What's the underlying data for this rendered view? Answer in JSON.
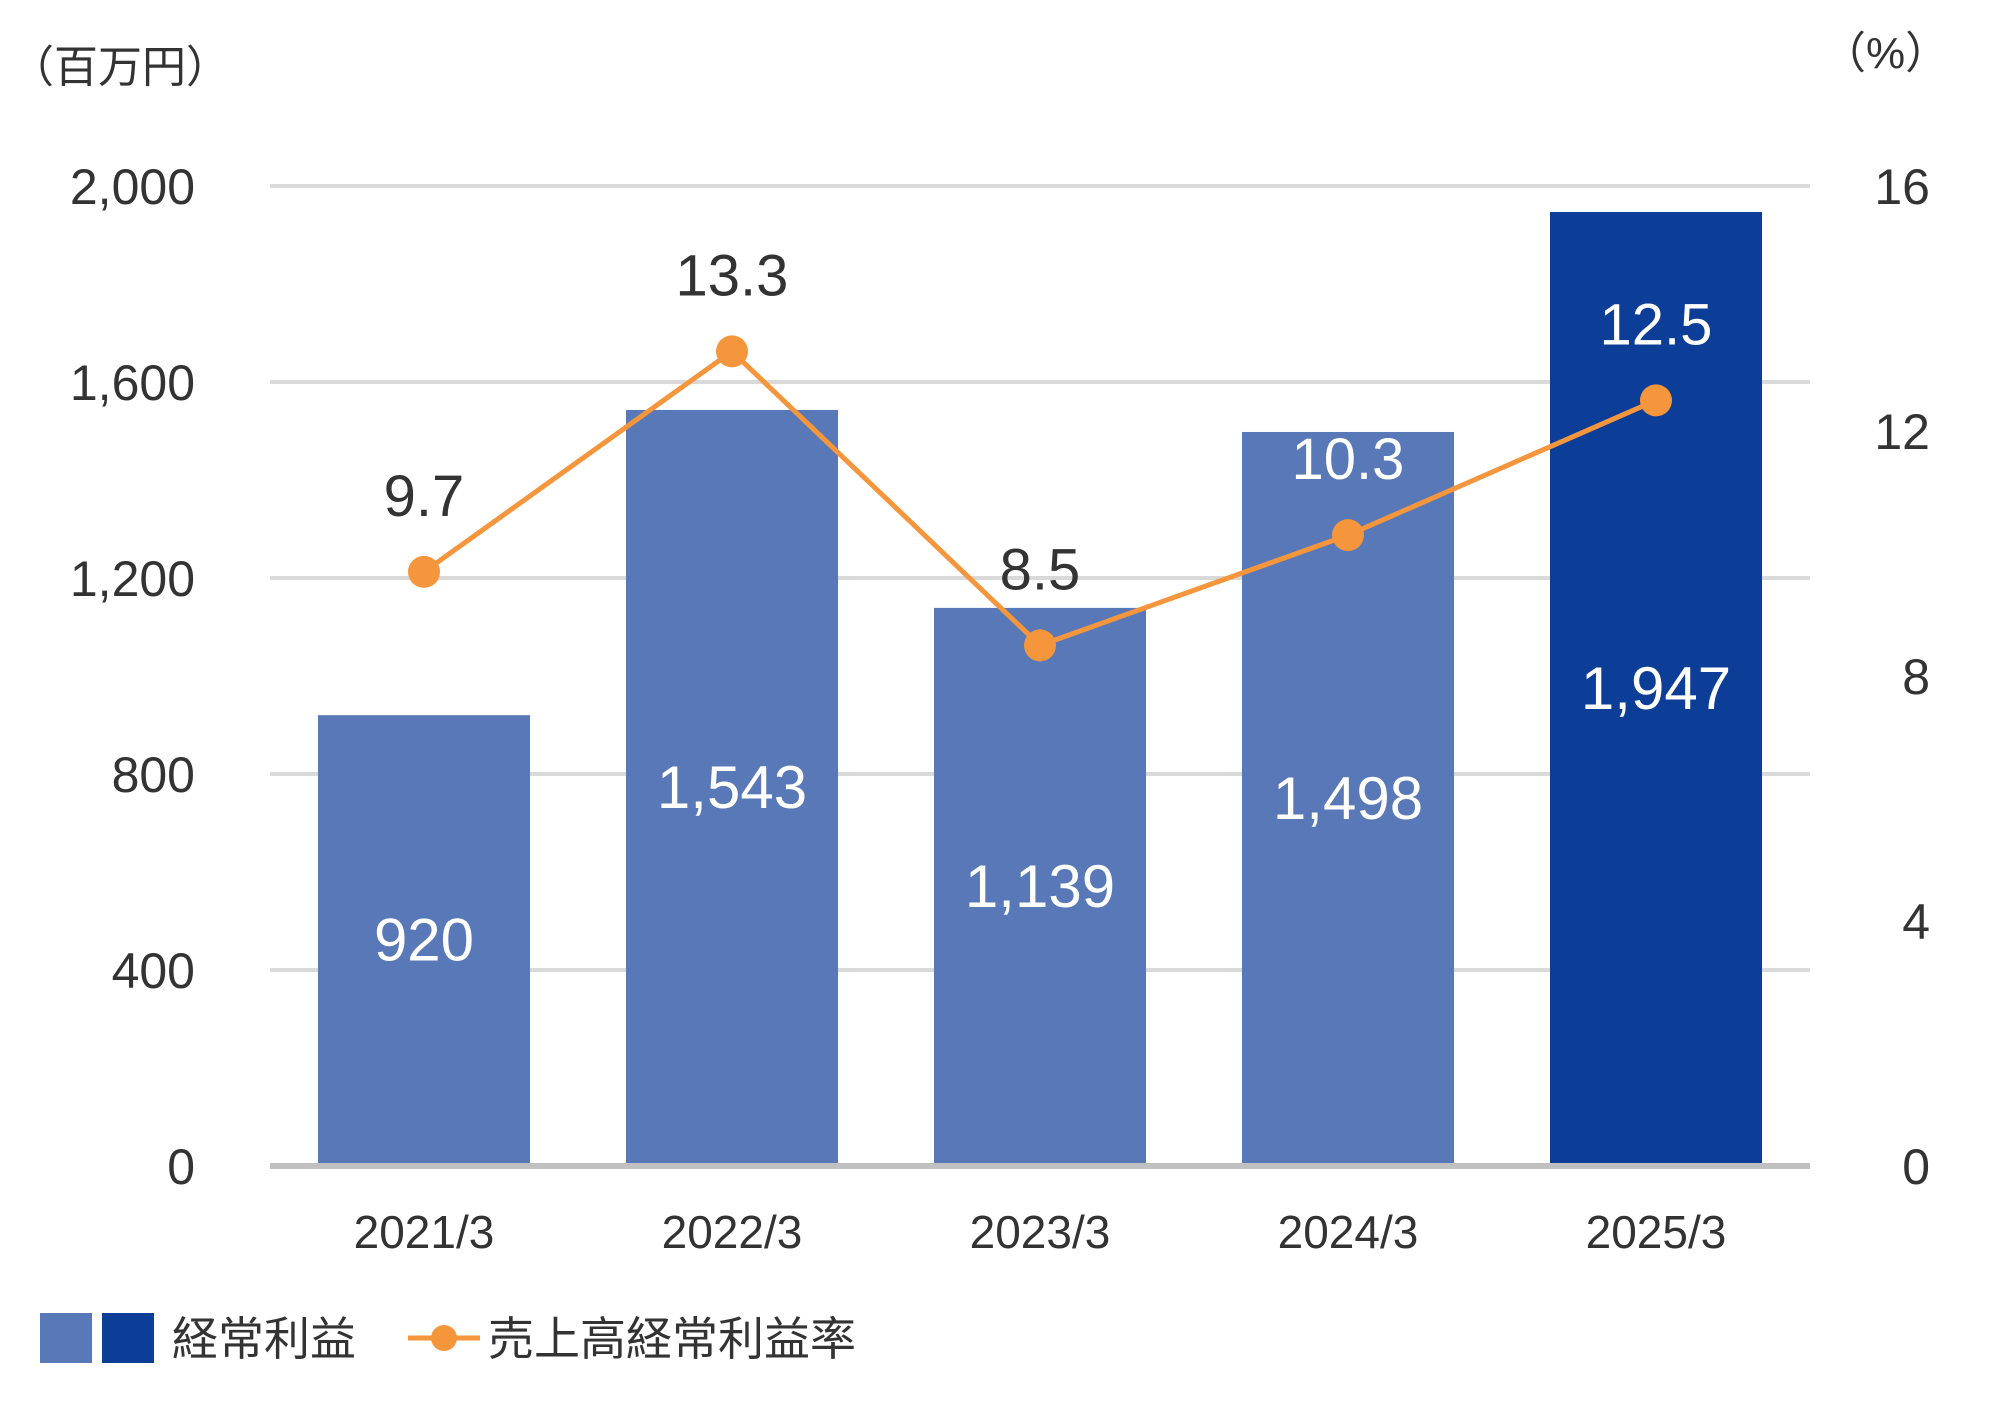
{
  "chart_data": {
    "type": "bar",
    "categories": [
      "2021/3",
      "2022/3",
      "2023/3",
      "2024/3",
      "2025/3"
    ],
    "left_unit": "（百万円）",
    "right_unit": "（%）",
    "left_ylim": [
      0,
      2000
    ],
    "left_ticks": [
      "0",
      "400",
      "800",
      "1,200",
      "1,600",
      "2,000"
    ],
    "left_tick_values": [
      0,
      400,
      800,
      1200,
      1600,
      2000
    ],
    "right_ylim": [
      0,
      16
    ],
    "right_ticks": [
      "0",
      "4",
      "8",
      "12",
      "16"
    ],
    "right_tick_values": [
      0,
      4,
      8,
      12,
      16
    ],
    "grid": true,
    "legend_position": "bottom-left",
    "series": [
      {
        "name": "経常利益",
        "kind": "bar",
        "axis": "left",
        "values": [
          920,
          1543,
          1139,
          1498,
          1947
        ],
        "labels": [
          "920",
          "1,543",
          "1,139",
          "1,498",
          "1,947"
        ],
        "color": "#5878b7",
        "highlight_color": "#0c3e98",
        "highlight_index": 4
      },
      {
        "name": "売上高経常利益率",
        "kind": "line",
        "axis": "right",
        "values": [
          9.7,
          13.3,
          8.5,
          10.3,
          12.5
        ],
        "labels": [
          "9.7",
          "13.3",
          "8.5",
          "10.3",
          "12.5"
        ],
        "color": "#f5963d"
      }
    ]
  }
}
